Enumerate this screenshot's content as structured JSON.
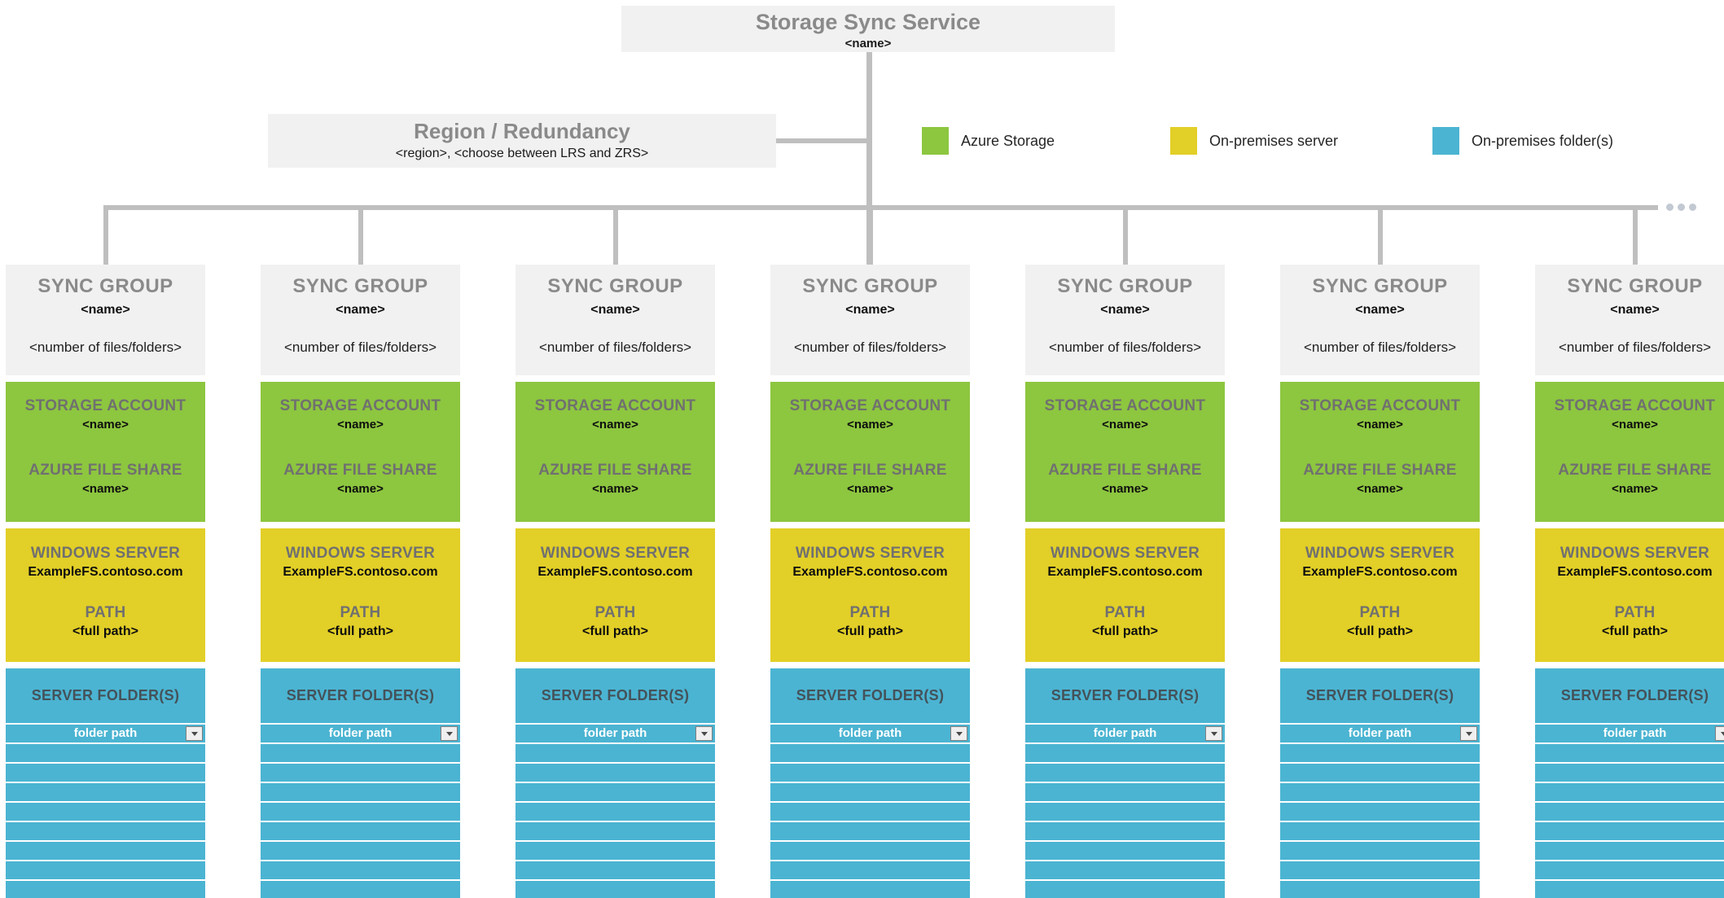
{
  "root_box": {
    "title": "Storage Sync Service",
    "subtitle": "<name>"
  },
  "region_box": {
    "title": "Region / Redundancy",
    "subtitle": "<region>, <choose between LRS and ZRS>"
  },
  "legend": {
    "items": [
      {
        "label": "Azure Storage",
        "color": "#8DC63F"
      },
      {
        "label": "On-premises server",
        "color": "#E2CF27"
      },
      {
        "label": "On-premises folder(s)",
        "color": "#4BB4D2"
      }
    ]
  },
  "connectors": {
    "ellipsis_dots": 3
  },
  "colors": {
    "azure_storage_green": "#8DC63F",
    "on_premises_server_yellow": "#E2CF27",
    "on_premises_folders_blue": "#4BB4D2",
    "box_gray": "#F1F1F1",
    "heading_gray": "#8A8A8A",
    "connector_gray": "#BFBFBF"
  },
  "sync_groups": [
    {
      "header": {
        "title": "SYNC GROUP",
        "name": "<name>",
        "count": "<number of files/folders>"
      },
      "storage_account": {
        "label": "STORAGE ACCOUNT",
        "name": "<name>",
        "share_label": "AZURE FILE SHARE",
        "share_name": "<name>"
      },
      "windows_server": {
        "label": "WINDOWS SERVER",
        "name": "ExampleFS.contoso.com",
        "path_label": "PATH",
        "path_value": "<full path>"
      },
      "server_folders": {
        "label": "SERVER FOLDER(S)",
        "selected_value": "folder path",
        "empty_rows": 8
      }
    },
    {
      "header": {
        "title": "SYNC GROUP",
        "name": "<name>",
        "count": "<number of files/folders>"
      },
      "storage_account": {
        "label": "STORAGE ACCOUNT",
        "name": "<name>",
        "share_label": "AZURE FILE SHARE",
        "share_name": "<name>"
      },
      "windows_server": {
        "label": "WINDOWS SERVER",
        "name": "ExampleFS.contoso.com",
        "path_label": "PATH",
        "path_value": "<full path>"
      },
      "server_folders": {
        "label": "SERVER FOLDER(S)",
        "selected_value": "folder path",
        "empty_rows": 8
      }
    },
    {
      "header": {
        "title": "SYNC GROUP",
        "name": "<name>",
        "count": "<number of files/folders>"
      },
      "storage_account": {
        "label": "STORAGE ACCOUNT",
        "name": "<name>",
        "share_label": "AZURE FILE SHARE",
        "share_name": "<name>"
      },
      "windows_server": {
        "label": "WINDOWS SERVER",
        "name": "ExampleFS.contoso.com",
        "path_label": "PATH",
        "path_value": "<full path>"
      },
      "server_folders": {
        "label": "SERVER FOLDER(S)",
        "selected_value": "folder path",
        "empty_rows": 8
      }
    },
    {
      "header": {
        "title": "SYNC GROUP",
        "name": "<name>",
        "count": "<number of files/folders>"
      },
      "storage_account": {
        "label": "STORAGE ACCOUNT",
        "name": "<name>",
        "share_label": "AZURE FILE SHARE",
        "share_name": "<name>"
      },
      "windows_server": {
        "label": "WINDOWS SERVER",
        "name": "ExampleFS.contoso.com",
        "path_label": "PATH",
        "path_value": "<full path>"
      },
      "server_folders": {
        "label": "SERVER FOLDER(S)",
        "selected_value": "folder path",
        "empty_rows": 8
      }
    },
    {
      "header": {
        "title": "SYNC GROUP",
        "name": "<name>",
        "count": "<number of files/folders>"
      },
      "storage_account": {
        "label": "STORAGE ACCOUNT",
        "name": "<name>",
        "share_label": "AZURE FILE SHARE",
        "share_name": "<name>"
      },
      "windows_server": {
        "label": "WINDOWS SERVER",
        "name": "ExampleFS.contoso.com",
        "path_label": "PATH",
        "path_value": "<full path>"
      },
      "server_folders": {
        "label": "SERVER FOLDER(S)",
        "selected_value": "folder path",
        "empty_rows": 8
      }
    },
    {
      "header": {
        "title": "SYNC GROUP",
        "name": "<name>",
        "count": "<number of files/folders>"
      },
      "storage_account": {
        "label": "STORAGE ACCOUNT",
        "name": "<name>",
        "share_label": "AZURE FILE SHARE",
        "share_name": "<name>"
      },
      "windows_server": {
        "label": "WINDOWS SERVER",
        "name": "ExampleFS.contoso.com",
        "path_label": "PATH",
        "path_value": "<full path>"
      },
      "server_folders": {
        "label": "SERVER FOLDER(S)",
        "selected_value": "folder path",
        "empty_rows": 8
      }
    },
    {
      "header": {
        "title": "SYNC GROUP",
        "name": "<name>",
        "count": "<number of files/folders>"
      },
      "storage_account": {
        "label": "STORAGE ACCOUNT",
        "name": "<name>",
        "share_label": "AZURE FILE SHARE",
        "share_name": "<name>"
      },
      "windows_server": {
        "label": "WINDOWS SERVER",
        "name": "ExampleFS.contoso.com",
        "path_label": "PATH",
        "path_value": "<full path>"
      },
      "server_folders": {
        "label": "SERVER FOLDER(S)",
        "selected_value": "folder path",
        "empty_rows": 8
      }
    }
  ]
}
